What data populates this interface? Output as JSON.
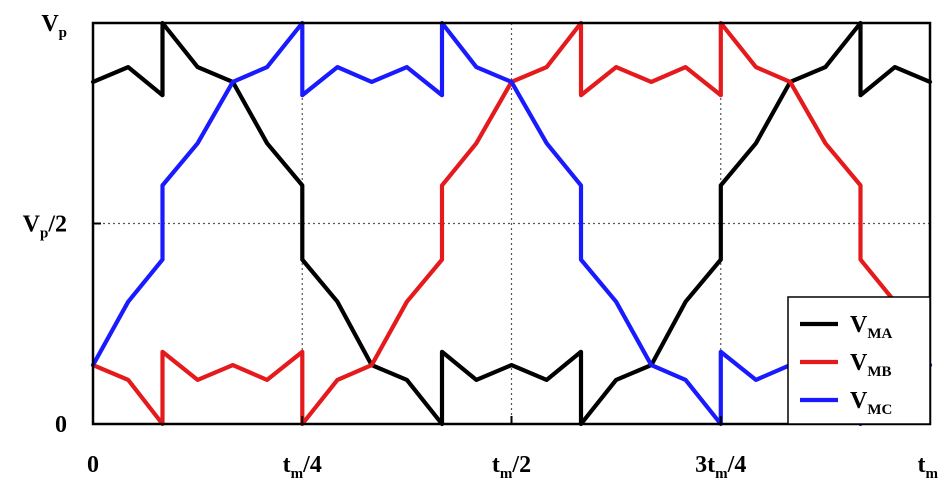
{
  "chart_data": {
    "type": "line",
    "title": "",
    "xlabel": "",
    "ylabel": "",
    "x_ticks": [
      {
        "x": 0,
        "main": "0",
        "sub": "",
        "suffix": ""
      },
      {
        "x": 0.25,
        "main": "t",
        "sub": "m",
        "suffix": "/4"
      },
      {
        "x": 0.5,
        "main": "t",
        "sub": "m",
        "suffix": "/2"
      },
      {
        "x": 0.75,
        "main": "3t",
        "sub": "m",
        "suffix": "/4"
      },
      {
        "x": 1.0,
        "main": "t",
        "sub": "m",
        "suffix": ""
      }
    ],
    "y_ticks": [
      {
        "y": 0,
        "main": "0",
        "sub": "",
        "suffix": ""
      },
      {
        "y": 0.5,
        "main": "V",
        "sub": "p",
        "suffix": "/2"
      },
      {
        "y": 1.0,
        "main": "V",
        "sub": "p",
        "suffix": ""
      }
    ],
    "xlim": [
      0,
      1.0
    ],
    "ylim": [
      0,
      1.0
    ],
    "grid": true,
    "legend_position": "bottom-right",
    "series": [
      {
        "name": "V",
        "name_sub": "MA",
        "color": "#000000",
        "points": [
          [
            0.0,
            0.853
          ],
          [
            0.042,
            0.89
          ],
          [
            0.083,
            0.82
          ],
          [
            0.083,
            1.0
          ],
          [
            0.125,
            0.89
          ],
          [
            0.167,
            0.853
          ],
          [
            0.208,
            0.7
          ],
          [
            0.25,
            0.595
          ],
          [
            0.25,
            0.41
          ],
          [
            0.292,
            0.305
          ],
          [
            0.333,
            0.147
          ],
          [
            0.375,
            0.11
          ],
          [
            0.417,
            0.0
          ],
          [
            0.417,
            0.18
          ],
          [
            0.458,
            0.11
          ],
          [
            0.5,
            0.147
          ],
          [
            0.542,
            0.11
          ],
          [
            0.583,
            0.18
          ],
          [
            0.583,
            0.0
          ],
          [
            0.625,
            0.11
          ],
          [
            0.667,
            0.147
          ],
          [
            0.708,
            0.305
          ],
          [
            0.75,
            0.41
          ],
          [
            0.75,
            0.595
          ],
          [
            0.792,
            0.7
          ],
          [
            0.833,
            0.853
          ],
          [
            0.875,
            0.89
          ],
          [
            0.917,
            1.0
          ],
          [
            0.917,
            0.82
          ],
          [
            0.958,
            0.89
          ],
          [
            1.0,
            0.853
          ]
        ]
      },
      {
        "name": "V",
        "name_sub": "MB",
        "color": "#e41a1c",
        "points": [
          [
            0.0,
            0.147
          ],
          [
            0.042,
            0.11
          ],
          [
            0.083,
            0.0
          ],
          [
            0.083,
            0.18
          ],
          [
            0.125,
            0.11
          ],
          [
            0.167,
            0.147
          ],
          [
            0.208,
            0.11
          ],
          [
            0.25,
            0.18
          ],
          [
            0.25,
            0.0
          ],
          [
            0.292,
            0.11
          ],
          [
            0.333,
            0.147
          ],
          [
            0.375,
            0.305
          ],
          [
            0.417,
            0.41
          ],
          [
            0.417,
            0.595
          ],
          [
            0.458,
            0.7
          ],
          [
            0.5,
            0.853
          ],
          [
            0.542,
            0.89
          ],
          [
            0.583,
            1.0
          ],
          [
            0.583,
            0.82
          ],
          [
            0.625,
            0.89
          ],
          [
            0.667,
            0.853
          ],
          [
            0.708,
            0.89
          ],
          [
            0.75,
            0.82
          ],
          [
            0.75,
            1.0
          ],
          [
            0.792,
            0.89
          ],
          [
            0.833,
            0.853
          ],
          [
            0.875,
            0.7
          ],
          [
            0.917,
            0.595
          ],
          [
            0.917,
            0.41
          ],
          [
            0.958,
            0.305
          ],
          [
            1.0,
            0.147
          ]
        ]
      },
      {
        "name": "V",
        "name_sub": "MC",
        "color": "#1a1aff",
        "points": [
          [
            0.0,
            0.147
          ],
          [
            0.042,
            0.305
          ],
          [
            0.083,
            0.41
          ],
          [
            0.083,
            0.595
          ],
          [
            0.125,
            0.7
          ],
          [
            0.167,
            0.853
          ],
          [
            0.208,
            0.89
          ],
          [
            0.25,
            1.0
          ],
          [
            0.25,
            0.82
          ],
          [
            0.292,
            0.89
          ],
          [
            0.333,
            0.853
          ],
          [
            0.375,
            0.89
          ],
          [
            0.417,
            0.82
          ],
          [
            0.417,
            1.0
          ],
          [
            0.458,
            0.89
          ],
          [
            0.5,
            0.853
          ],
          [
            0.542,
            0.7
          ],
          [
            0.583,
            0.595
          ],
          [
            0.583,
            0.41
          ],
          [
            0.625,
            0.305
          ],
          [
            0.667,
            0.147
          ],
          [
            0.708,
            0.11
          ],
          [
            0.75,
            0.0
          ],
          [
            0.75,
            0.18
          ],
          [
            0.792,
            0.11
          ],
          [
            0.833,
            0.147
          ],
          [
            0.875,
            0.11
          ],
          [
            0.917,
            0.18
          ],
          [
            0.917,
            0.0
          ],
          [
            0.958,
            0.11
          ],
          [
            1.0,
            0.147
          ]
        ]
      }
    ]
  }
}
